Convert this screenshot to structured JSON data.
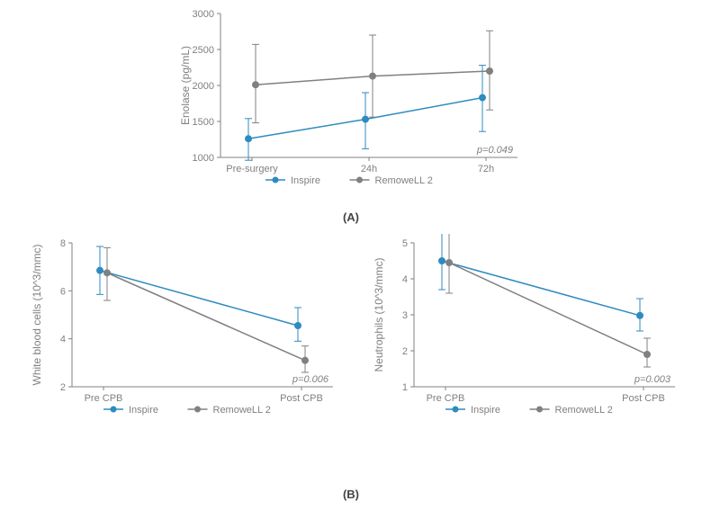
{
  "panelA": {
    "label": "(A)",
    "type": "line-errorbar",
    "y_title": "Enolase (pg/mL)",
    "x_categories": [
      "Pre-surgery",
      "24h",
      "72h"
    ],
    "ylim": [
      1000,
      3000
    ],
    "yticks": [
      1000,
      1500,
      2000,
      2500,
      3000
    ],
    "pvalue_text": "p=0.049",
    "series": [
      {
        "name": "Inspire",
        "color": "#2e8bc0",
        "marker": "circle",
        "values": [
          1260,
          1530,
          1830
        ],
        "err_lo": [
          960,
          1120,
          1360
        ],
        "err_hi": [
          1540,
          1900,
          2280
        ]
      },
      {
        "name": "RemoweLL 2",
        "color": "#808080",
        "marker": "circle",
        "values": [
          2010,
          2130,
          2200
        ],
        "err_lo": [
          1480,
          1560,
          1660
        ],
        "err_hi": [
          2570,
          2700,
          2760
        ]
      }
    ],
    "background_color": "#ffffff"
  },
  "panelB_left": {
    "type": "line-errorbar",
    "y_title": "White blood cells (10^3/mmc)",
    "x_categories": [
      "Pre CPB",
      "Post CPB"
    ],
    "ylim": [
      2,
      8
    ],
    "yticks": [
      2,
      4,
      6,
      8
    ],
    "pvalue_text": "p=0.006",
    "series": [
      {
        "name": "Inspire",
        "color": "#2e8bc0",
        "values": [
          6.85,
          4.55
        ],
        "err_lo": [
          5.85,
          3.9
        ],
        "err_hi": [
          7.85,
          5.3
        ]
      },
      {
        "name": "RemoweLL 2",
        "color": "#808080",
        "values": [
          6.75,
          3.1
        ],
        "err_lo": [
          5.6,
          2.6
        ],
        "err_hi": [
          7.8,
          3.7
        ]
      }
    ]
  },
  "panelB_right": {
    "type": "line-errorbar",
    "y_title": "Neutrophils (10^3/mmc)",
    "x_categories": [
      "Pre CPB",
      "Post CPB"
    ],
    "ylim": [
      1,
      5
    ],
    "yticks": [
      1,
      2,
      3,
      4,
      5
    ],
    "pvalue_text": "p=0.003",
    "series": [
      {
        "name": "Inspire",
        "color": "#2e8bc0",
        "values": [
          4.5,
          2.98
        ],
        "err_lo": [
          3.7,
          2.55
        ],
        "err_hi": [
          5.35,
          3.45
        ]
      },
      {
        "name": "RemoweLL 2",
        "color": "#808080",
        "values": [
          4.45,
          1.9
        ],
        "err_lo": [
          3.6,
          1.55
        ],
        "err_hi": [
          5.3,
          2.35
        ]
      }
    ]
  },
  "panelB_label": "(B)",
  "legend": {
    "items": [
      {
        "name": "Inspire",
        "color": "#2e8bc0"
      },
      {
        "name": "RemoweLL 2",
        "color": "#808080"
      }
    ]
  }
}
